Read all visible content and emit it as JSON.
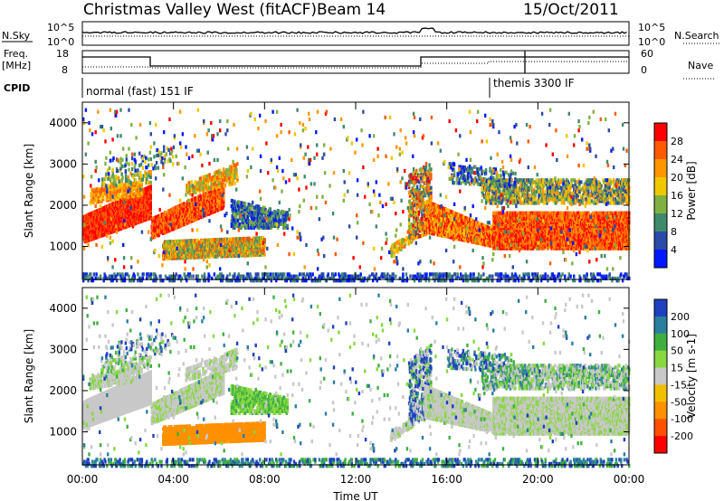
{
  "header": {
    "station": "Christmas Valley West (fitACF)",
    "beam": "Beam 14",
    "date": "15/Oct/2011"
  },
  "strips": {
    "nsky_label": "N.Sky",
    "nsearch_label": "N.Search",
    "nsky_ticks": [
      "10^5",
      "10^0"
    ],
    "nsearch_ticks": [
      "10^5",
      "10^0"
    ],
    "freq_label_1": "Freq.",
    "freq_label_2": "[MHz]",
    "freq_ticks": [
      "18",
      "8"
    ],
    "nave_label": "Nave",
    "nave_ticks": [
      "60",
      "0"
    ],
    "cpid_label": "CPID",
    "cpid_segments": [
      "normal (fast) 151 IF",
      "themis 3300 IF"
    ]
  },
  "chart_data": {
    "type": "heatmap",
    "xlabel": "Time UT",
    "x_ticks": [
      "00:00",
      "04:00",
      "08:00",
      "12:00",
      "16:00",
      "20:00",
      "00:00"
    ],
    "xlim_hours": [
      0,
      24
    ],
    "ylabel": "Slant Range [km]",
    "ylim_km": [
      200,
      4500
    ],
    "y_ticks": [
      1000,
      2000,
      3000,
      4000
    ],
    "panels": [
      {
        "name": "power",
        "colorbar_label": "Power [dB]",
        "colorbar_ticks": [
          "28",
          "24",
          "20",
          "16",
          "12",
          "8",
          "4"
        ],
        "colors": [
          "#ff0000",
          "#ff5a00",
          "#ff9600",
          "#f0c800",
          "#80b040",
          "#3f8a6a",
          "#2a4aa8",
          "#0018ff"
        ]
      },
      {
        "name": "velocity",
        "colorbar_label": "Velocity [m s-1]",
        "colorbar_ticks": [
          "200",
          "100",
          "50",
          "15",
          "-15",
          "-50",
          "-100",
          "-200"
        ],
        "colors": [
          "#1f3fbf",
          "#2a7fa0",
          "#3fb040",
          "#88d840",
          "#c8c8c8",
          "#f0c000",
          "#ff9000",
          "#ff5000",
          "#ff0000"
        ]
      }
    ]
  }
}
